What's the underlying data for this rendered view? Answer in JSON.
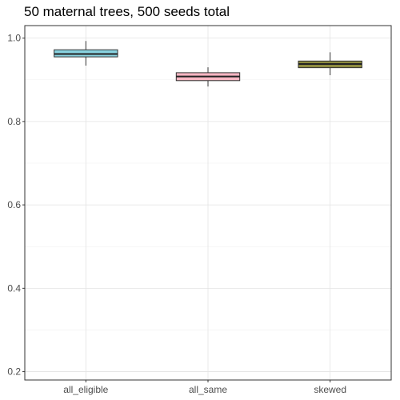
{
  "chart_data": {
    "type": "box",
    "title": "50 maternal trees, 500 seeds total",
    "xlabel": "",
    "ylabel": "",
    "categories": [
      "all_eligible",
      "all_same",
      "skewed"
    ],
    "ylim": [
      0.18,
      1.03
    ],
    "yticks": [
      0.2,
      0.4,
      0.6,
      0.8,
      1.0
    ],
    "ytick_labels": [
      "0.2",
      "0.4",
      "0.6",
      "0.8",
      "1.0"
    ],
    "grid": true,
    "legend": "none",
    "boxes": [
      {
        "category": "all_eligible",
        "min": 0.934,
        "q1": 0.955,
        "median": 0.962,
        "q3": 0.972,
        "max": 0.993,
        "color": "#89d3e0"
      },
      {
        "category": "all_same",
        "min": 0.884,
        "q1": 0.898,
        "median": 0.908,
        "q3": 0.917,
        "max": 0.93,
        "color": "#f7b6c2"
      },
      {
        "category": "skewed",
        "min": 0.911,
        "q1": 0.929,
        "median": 0.938,
        "q3": 0.945,
        "max": 0.966,
        "color": "#8c8a3f"
      }
    ]
  }
}
